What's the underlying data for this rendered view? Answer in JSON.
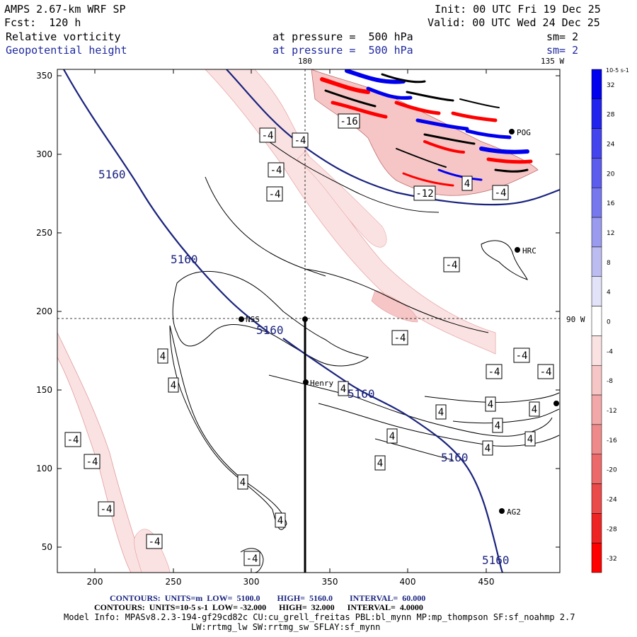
{
  "header": {
    "model_line": "AMPS 2.67-km WRF SP",
    "forecast_line": "Fcst:  120 h",
    "init_line": "Init: 00 UTC Fri 19 Dec 25",
    "valid_line": "Valid: 00 UTC Wed 24 Dec 25",
    "field1_name": "Relative vorticity",
    "field1_pressure": "at pressure =  500 hPa",
    "field1_sm": "sm= 2",
    "field2_name": "Geopotential height",
    "field2_pressure": "at pressure =  500 hPa",
    "field2_sm": "sm= 2"
  },
  "map": {
    "lon_label_top_left": "180",
    "lon_label_top_right": "135 W",
    "lon_label_right": "90 W",
    "x_ticks": [
      "200",
      "250",
      "300",
      "350",
      "400",
      "450"
    ],
    "y_ticks": [
      "350",
      "300",
      "250",
      "200",
      "150",
      "100",
      "50"
    ],
    "stations": [
      "POG",
      "HRC",
      "NSS",
      "Henry",
      "AG2"
    ],
    "height_contour_label": "5160",
    "vort_labels_pos": "4",
    "vort_labels_neg": "-4",
    "vort_label_12": "-12",
    "vort_label_16": "-16"
  },
  "colorbar": {
    "units": "10-5 s-1",
    "ticks": [
      "32",
      "28",
      "24",
      "20",
      "16",
      "12",
      "8",
      "4",
      "0",
      "-4",
      "-8",
      "-12",
      "-16",
      "-20",
      "-24",
      "-28",
      "-32"
    ],
    "colors": [
      "#0000ee",
      "#2222ee",
      "#4444ee",
      "#5c5cee",
      "#7878ee",
      "#9a9aee",
      "#bcbcf0",
      "#e2e2f8",
      "#ffffff",
      "#fbe2e2",
      "#f6c6c6",
      "#f2a8a8",
      "#ee8a8a",
      "#ec6a6a",
      "#ea4a4a",
      "#ee2424",
      "#ff0000"
    ]
  },
  "footer": {
    "contours1": "CONTOURS:  UNITS=m  LOW=  5100.0        HIGH=  5160.0        INTERVAL=  60.000",
    "contours2": "CONTOURS:  UNITS=10-5 s-1  LOW= -32.000      HIGH=  32.000      INTERVAL=  4.0000",
    "model_info": "Model Info: MPASv8.2.3-194-gf29cd82c CU:cu_grell_freitas PBL:bl_mynn MP:mp_thompson SF:sf_noahmp 2.7",
    "model_info2": "LW:rrtmg_lw SW:rrtmg_sw SFLAY:sf_mynn"
  }
}
